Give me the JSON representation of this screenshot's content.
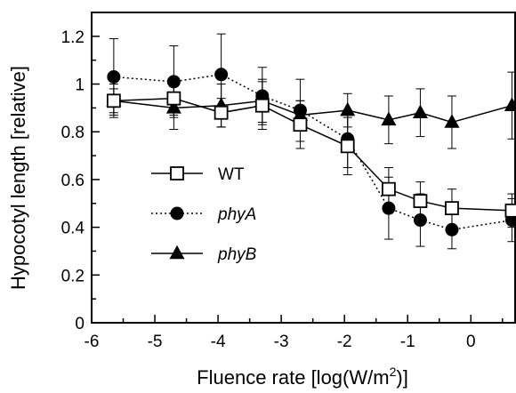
{
  "chart_data": {
    "type": "line",
    "xlabel": "Fluence rate [log(W/m",
    "xlabel_sup": "2",
    "xlabel_tail": ")]",
    "ylabel": "Hypocotyl length [relative]",
    "xlim": [
      -6,
      0.7
    ],
    "ylim": [
      0,
      1.3
    ],
    "xticks": [
      -6,
      -5,
      -4,
      -3,
      -2,
      -1,
      0
    ],
    "xtick_labels": [
      "-6",
      "-5",
      "-4",
      "-3",
      "-2",
      "-1",
      "0"
    ],
    "yticks": [
      0,
      0.2,
      0.4,
      0.6,
      0.8,
      1,
      1.2
    ],
    "ytick_labels": [
      "0",
      "0.2",
      "0.4",
      "0.6",
      "0.8",
      "1",
      "1.2"
    ],
    "grid": false,
    "legend_position": "center-left",
    "x": [
      -5.65,
      -4.7,
      -3.95,
      -3.3,
      -2.7,
      -1.95,
      -1.3,
      -0.8,
      -0.3,
      0.65
    ],
    "series": [
      {
        "name": "WT",
        "marker": "open-square",
        "line": "solid",
        "values": [
          0.93,
          0.94,
          0.88,
          0.91,
          0.83,
          0.74,
          0.56,
          0.51,
          0.48,
          0.47
        ],
        "errors": [
          0.05,
          0.07,
          0.06,
          0.1,
          0.1,
          0.12,
          0.09,
          0.08,
          0.08,
          0.07
        ]
      },
      {
        "name": "phyA",
        "marker": "filled-circle",
        "line": "dotted",
        "values": [
          1.03,
          1.01,
          1.04,
          0.95,
          0.89,
          0.77,
          0.48,
          0.43,
          0.39,
          0.43
        ],
        "errors": [
          0.16,
          0.15,
          0.17,
          0.12,
          0.13,
          0.12,
          0.13,
          0.11,
          0.08,
          0.09
        ]
      },
      {
        "name": "phyB",
        "marker": "filled-triangle",
        "line": "solid",
        "values": [
          0.93,
          0.9,
          0.91,
          0.93,
          0.87,
          0.89,
          0.85,
          0.88,
          0.84,
          0.91
        ],
        "errors": [
          0.07,
          0.09,
          0.09,
          0.09,
          0.06,
          0.07,
          0.1,
          0.1,
          0.11,
          0.14
        ]
      }
    ]
  },
  "legend": {
    "items": [
      {
        "label": "WT",
        "italic": false
      },
      {
        "label": "phyA",
        "italic": true
      },
      {
        "label": "phyB",
        "italic": true
      }
    ]
  },
  "colors": {
    "ink": "#000000",
    "background": "#ffffff"
  }
}
